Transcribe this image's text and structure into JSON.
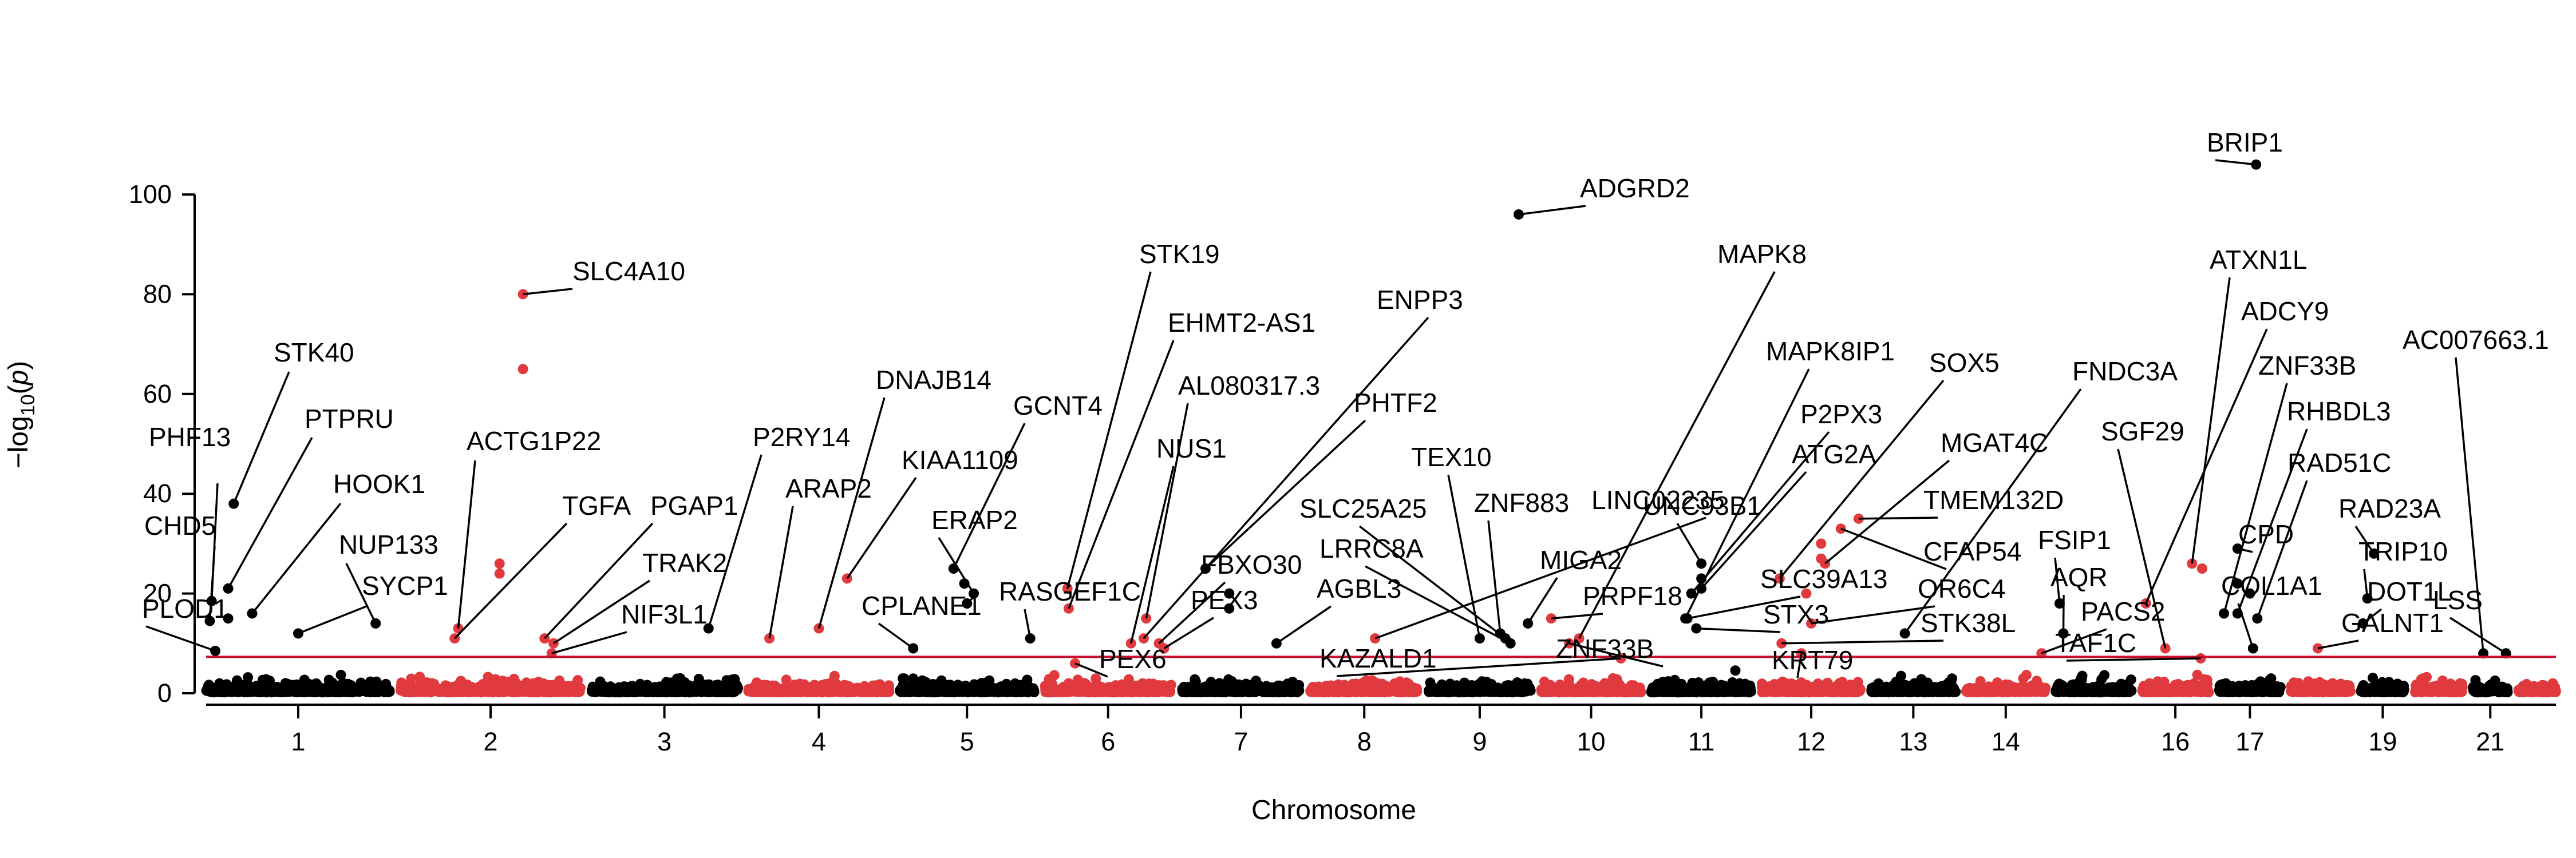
{
  "chart_data": {
    "type": "scatter",
    "title": "",
    "xlabel": "Chromosome",
    "ylabel_main": "−log",
    "ylabel_sub": "10",
    "ylabel_var": "p",
    "ylim": [
      0,
      110
    ],
    "yticks": [
      0,
      20,
      40,
      60,
      80,
      100
    ],
    "threshold": 7.3,
    "colors": {
      "odd": "#000000",
      "even": "#e03a3e",
      "threshold": "#c8102e"
    },
    "chromosomes": [
      {
        "chr": "1",
        "label": "1",
        "size": 248,
        "color": "#000000"
      },
      {
        "chr": "2",
        "label": "2",
        "size": 242,
        "color": "#e03a3e"
      },
      {
        "chr": "3",
        "label": "3",
        "size": 198,
        "color": "#000000"
      },
      {
        "chr": "4",
        "label": "4",
        "size": 190,
        "color": "#e03a3e"
      },
      {
        "chr": "5",
        "label": "5",
        "size": 181,
        "color": "#000000"
      },
      {
        "chr": "6",
        "label": "6",
        "size": 171,
        "color": "#e03a3e"
      },
      {
        "chr": "7",
        "label": "7",
        "size": 159,
        "color": "#000000"
      },
      {
        "chr": "8",
        "label": "8",
        "size": 145,
        "color": "#e03a3e"
      },
      {
        "chr": "9",
        "label": "9",
        "size": 138,
        "color": "#000000"
      },
      {
        "chr": "10",
        "label": "10",
        "size": 134,
        "color": "#e03a3e"
      },
      {
        "chr": "11",
        "label": "11",
        "size": 135,
        "color": "#000000"
      },
      {
        "chr": "12",
        "label": "12",
        "size": 133,
        "color": "#e03a3e"
      },
      {
        "chr": "13",
        "label": "13",
        "size": 114,
        "color": "#000000"
      },
      {
        "chr": "14",
        "label": "14",
        "size": 107,
        "color": "#e03a3e"
      },
      {
        "chr": "15",
        "label": "",
        "size": 102,
        "color": "#000000"
      },
      {
        "chr": "16",
        "label": "16",
        "size": 90,
        "color": "#e03a3e"
      },
      {
        "chr": "17",
        "label": "17",
        "size": 83,
        "color": "#000000"
      },
      {
        "chr": "18",
        "label": "",
        "size": 80,
        "color": "#e03a3e"
      },
      {
        "chr": "19",
        "label": "19",
        "size": 59,
        "color": "#000000"
      },
      {
        "chr": "20",
        "label": "",
        "size": 64,
        "color": "#e03a3e"
      },
      {
        "chr": "21",
        "label": "21",
        "size": 47,
        "color": "#000000"
      },
      {
        "chr": "22",
        "label": "",
        "size": 51,
        "color": "#e03a3e"
      }
    ],
    "annotated_hits": [
      {
        "gene": "PHF13",
        "chr": "1",
        "pos": 0.03,
        "y": 18.5
      },
      {
        "gene": "CHD5",
        "chr": "1",
        "pos": 0.02,
        "y": 14.5
      },
      {
        "gene": "STK40",
        "chr": "1",
        "pos": 0.15,
        "y": 38
      },
      {
        "gene": "PTPRU",
        "chr": "1",
        "pos": 0.12,
        "y": 21
      },
      {
        "gene": "HOOK1",
        "chr": "1",
        "pos": 0.25,
        "y": 16
      },
      {
        "gene": "NUP133",
        "chr": "1",
        "pos": 0.92,
        "y": 14
      },
      {
        "gene": "SYCP1",
        "chr": "1",
        "pos": 0.5,
        "y": 12
      },
      {
        "gene": "PLOD1",
        "chr": "1",
        "pos": 0.05,
        "y": 8.5
      },
      {
        "gene": "ACTG1P22",
        "chr": "2",
        "pos": 0.32,
        "y": 13
      },
      {
        "gene": "SLC4A10",
        "chr": "2",
        "pos": 0.68,
        "y": 80
      },
      {
        "gene": "TGFA",
        "chr": "2",
        "pos": 0.3,
        "y": 11
      },
      {
        "gene": "PGAP1",
        "chr": "2",
        "pos": 0.8,
        "y": 11
      },
      {
        "gene": "TRAK2",
        "chr": "2",
        "pos": 0.85,
        "y": 10
      },
      {
        "gene": "NIF3L1",
        "chr": "2",
        "pos": 0.84,
        "y": 8
      },
      {
        "gene": "P2RY14",
        "chr": "3",
        "pos": 0.8,
        "y": 13
      },
      {
        "gene": "ARAP2",
        "chr": "4",
        "pos": 0.15,
        "y": 11
      },
      {
        "gene": "DNAJB14",
        "chr": "4",
        "pos": 0.5,
        "y": 13
      },
      {
        "gene": "KIAA1109",
        "chr": "4",
        "pos": 0.7,
        "y": 23
      },
      {
        "gene": "CPLANE1",
        "chr": "5",
        "pos": 0.1,
        "y": 9
      },
      {
        "gene": "ERAP2",
        "chr": "5",
        "pos": 0.55,
        "y": 20
      },
      {
        "gene": "GCNT4",
        "chr": "5",
        "pos": 0.4,
        "y": 25
      },
      {
        "gene": "RASGEF1C",
        "chr": "5",
        "pos": 0.97,
        "y": 11
      },
      {
        "gene": "STK19",
        "chr": "6",
        "pos": 0.18,
        "y": 21
      },
      {
        "gene": "EHMT2-AS1",
        "chr": "6",
        "pos": 0.19,
        "y": 17
      },
      {
        "gene": "NUS1",
        "chr": "6",
        "pos": 0.68,
        "y": 10
      },
      {
        "gene": "PEX6",
        "chr": "6",
        "pos": 0.24,
        "y": 6
      },
      {
        "gene": "AL080317.3",
        "chr": "6",
        "pos": 0.8,
        "y": 15
      },
      {
        "gene": "ENPP3",
        "chr": "6",
        "pos": 0.78,
        "y": 11
      },
      {
        "gene": "FBXO30",
        "chr": "6",
        "pos": 0.9,
        "y": 10
      },
      {
        "gene": "PEX3",
        "chr": "6",
        "pos": 0.94,
        "y": 9
      },
      {
        "gene": "PHTF2",
        "chr": "7",
        "pos": 0.2,
        "y": 25
      },
      {
        "gene": "AGBL3",
        "chr": "7",
        "pos": 0.8,
        "y": 10
      },
      {
        "gene": "SLC25A25",
        "chr": "9",
        "pos": 0.75,
        "y": 11
      },
      {
        "gene": "LRRC8A",
        "chr": "9",
        "pos": 0.8,
        "y": 10
      },
      {
        "gene": "TEX10",
        "chr": "9",
        "pos": 0.5,
        "y": 11
      },
      {
        "gene": "ZNF883",
        "chr": "9",
        "pos": 0.7,
        "y": 12
      },
      {
        "gene": "KAZALD1",
        "chr": "10",
        "pos": 0.8,
        "y": 7
      },
      {
        "gene": "MIGA2",
        "chr": "9",
        "pos": 0.97,
        "y": 14
      },
      {
        "gene": "ADGRD2",
        "chr": "9",
        "pos": 0.88,
        "y": 96
      },
      {
        "gene": "PRPF18",
        "chr": "10",
        "pos": 0.1,
        "y": 15
      },
      {
        "gene": "ZNF33B",
        "chr": "10",
        "pos": 0.28,
        "y": 10
      },
      {
        "gene": "LINC02235",
        "chr": "8",
        "pos": 0.6,
        "y": 11
      },
      {
        "gene": "UNC93B1",
        "chr": "11",
        "pos": 0.5,
        "y": 26
      },
      {
        "gene": "MAPK8",
        "chr": "10",
        "pos": 0.38,
        "y": 11
      },
      {
        "gene": "MAPK8IP1",
        "chr": "11",
        "pos": 0.34,
        "y": 15
      },
      {
        "gene": "P2PX3",
        "chr": "11",
        "pos": 0.4,
        "y": 20
      },
      {
        "gene": "ATG2A",
        "chr": "11",
        "pos": 0.5,
        "y": 21
      },
      {
        "gene": "SLC39A13",
        "chr": "11",
        "pos": 0.36,
        "y": 15
      },
      {
        "gene": "STX3",
        "chr": "11",
        "pos": 0.45,
        "y": 13
      },
      {
        "gene": "KRT79",
        "chr": "12",
        "pos": 0.4,
        "y": 8
      },
      {
        "gene": "SOX5",
        "chr": "12",
        "pos": 0.18,
        "y": 23
      },
      {
        "gene": "MGAT4C",
        "chr": "12",
        "pos": 0.64,
        "y": 26
      },
      {
        "gene": "TMEM132D",
        "chr": "12",
        "pos": 0.98,
        "y": 35
      },
      {
        "gene": "CFAP54",
        "chr": "12",
        "pos": 0.8,
        "y": 33
      },
      {
        "gene": "OR6C4",
        "chr": "12",
        "pos": 0.5,
        "y": 14
      },
      {
        "gene": "STK38L",
        "chr": "12",
        "pos": 0.2,
        "y": 10
      },
      {
        "gene": "FNDC3A",
        "chr": "13",
        "pos": 0.4,
        "y": 12
      },
      {
        "gene": "FSIP1",
        "chr": "15",
        "pos": 0.05,
        "y": 18
      },
      {
        "gene": "AQR",
        "chr": "15",
        "pos": 0.1,
        "y": 12
      },
      {
        "gene": "TAF1C",
        "chr": "16",
        "pos": 0.88,
        "y": 7
      },
      {
        "gene": "PACS2",
        "chr": "14",
        "pos": 0.95,
        "y": 8
      },
      {
        "gene": "SGF29",
        "chr": "16",
        "pos": 0.35,
        "y": 9
      },
      {
        "gene": "ATXN1L",
        "chr": "16",
        "pos": 0.75,
        "y": 26
      },
      {
        "gene": "BRIP1",
        "chr": "17",
        "pos": 0.6,
        "y": 106
      },
      {
        "gene": "ADCY9",
        "chr": "16",
        "pos": 0.06,
        "y": 18
      },
      {
        "gene": "ZNF33B",
        "chr": "17",
        "pos": 0.08,
        "y": 16
      },
      {
        "gene": "RHBDL3",
        "chr": "17",
        "pos": 0.3,
        "y": 16
      },
      {
        "gene": "RAD51C",
        "chr": "17",
        "pos": 0.62,
        "y": 15
      },
      {
        "gene": "CPD",
        "chr": "17",
        "pos": 0.3,
        "y": 29
      },
      {
        "gene": "COL1A1",
        "chr": "17",
        "pos": 0.55,
        "y": 9
      },
      {
        "gene": "RAD23A",
        "chr": "19",
        "pos": 0.3,
        "y": 28
      },
      {
        "gene": "TRIP10",
        "chr": "19",
        "pos": 0.15,
        "y": 19
      },
      {
        "gene": "DOT1L",
        "chr": "19",
        "pos": 0.05,
        "y": 14
      },
      {
        "gene": "GALNT1",
        "chr": "18",
        "pos": 0.45,
        "y": 9
      },
      {
        "gene": "AC007663.1",
        "chr": "21",
        "pos": 0.3,
        "y": 8
      },
      {
        "gene": "LSS",
        "chr": "21",
        "pos": 0.95,
        "y": 8
      }
    ],
    "extra_points": [
      {
        "chr": "2",
        "pos": 0.68,
        "y": 65
      },
      {
        "chr": "1",
        "pos": 0.12,
        "y": 15
      },
      {
        "chr": "2",
        "pos": 0.55,
        "y": 26
      },
      {
        "chr": "2",
        "pos": 0.55,
        "y": 24
      },
      {
        "chr": "5",
        "pos": 0.48,
        "y": 22
      },
      {
        "chr": "5",
        "pos": 0.5,
        "y": 18
      },
      {
        "chr": "7",
        "pos": 0.4,
        "y": 20
      },
      {
        "chr": "7",
        "pos": 0.4,
        "y": 17
      },
      {
        "chr": "11",
        "pos": 0.5,
        "y": 23
      },
      {
        "chr": "12",
        "pos": 0.6,
        "y": 30
      },
      {
        "chr": "12",
        "pos": 0.6,
        "y": 27
      },
      {
        "chr": "12",
        "pos": 0.45,
        "y": 20
      },
      {
        "chr": "16",
        "pos": 0.9,
        "y": 25
      },
      {
        "chr": "17",
        "pos": 0.3,
        "y": 22
      },
      {
        "chr": "17",
        "pos": 0.5,
        "y": 20
      }
    ]
  },
  "labels": [
    {
      "text": "PHF13"
    },
    {
      "text": "CHD5"
    },
    {
      "text": "STK40"
    },
    {
      "text": "PTPRU"
    },
    {
      "text": "HOOK1"
    },
    {
      "text": "NUP133"
    },
    {
      "text": "SYCP1"
    },
    {
      "text": "PLOD1"
    },
    {
      "text": "ACTG1P22"
    },
    {
      "text": "SLC4A10"
    },
    {
      "text": "TGFA"
    },
    {
      "text": "PGAP1"
    },
    {
      "text": "TRAK2"
    },
    {
      "text": "NIF3L1"
    },
    {
      "text": "P2RY14"
    },
    {
      "text": "ARAP2"
    },
    {
      "text": "DNAJB14"
    },
    {
      "text": "KIAA1109"
    },
    {
      "text": "CPLANE1"
    },
    {
      "text": "ERAP2"
    },
    {
      "text": "GCNT4"
    },
    {
      "text": "RASGEF1C"
    },
    {
      "text": "STK19"
    },
    {
      "text": "EHMT2-AS1"
    },
    {
      "text": "NUS1"
    },
    {
      "text": "PEX6"
    },
    {
      "text": "AL080317.3"
    },
    {
      "text": "ENPP3"
    },
    {
      "text": "FBXO30"
    },
    {
      "text": "PEX3"
    },
    {
      "text": "PHTF2"
    },
    {
      "text": "AGBL3"
    },
    {
      "text": "SLC25A25"
    },
    {
      "text": "LRRC8A"
    },
    {
      "text": "TEX10"
    },
    {
      "text": "ZNF883"
    },
    {
      "text": "KAZALD1"
    },
    {
      "text": "MIGA2"
    },
    {
      "text": "ADGRD2"
    },
    {
      "text": "PRPF18"
    },
    {
      "text": "ZNF33B"
    },
    {
      "text": "LINC02235"
    },
    {
      "text": "UNC93B1"
    },
    {
      "text": "MAPK8"
    },
    {
      "text": "MAPK8IP1"
    },
    {
      "text": "P2PX3"
    },
    {
      "text": "ATG2A"
    },
    {
      "text": "SLC39A13"
    },
    {
      "text": "STX3"
    },
    {
      "text": "KRT79"
    },
    {
      "text": "SOX5"
    },
    {
      "text": "MGAT4C"
    },
    {
      "text": "TMEM132D"
    },
    {
      "text": "CFAP54"
    },
    {
      "text": "OR6C4"
    },
    {
      "text": "STK38L"
    },
    {
      "text": "FNDC3A"
    },
    {
      "text": "FSIP1"
    },
    {
      "text": "AQR"
    },
    {
      "text": "TAF1C"
    },
    {
      "text": "PACS2"
    },
    {
      "text": "SGF29"
    },
    {
      "text": "ATXN1L"
    },
    {
      "text": "BRIP1"
    },
    {
      "text": "ADCY9"
    },
    {
      "text": "ZNF33B"
    },
    {
      "text": "RHBDL3"
    },
    {
      "text": "RAD51C"
    },
    {
      "text": "CPD"
    },
    {
      "text": "COL1A1"
    },
    {
      "text": "RAD23A"
    },
    {
      "text": "TRIP10"
    },
    {
      "text": "DOT1L"
    },
    {
      "text": "GALNT1"
    },
    {
      "text": "AC007663.1"
    },
    {
      "text": "LSS"
    }
  ]
}
